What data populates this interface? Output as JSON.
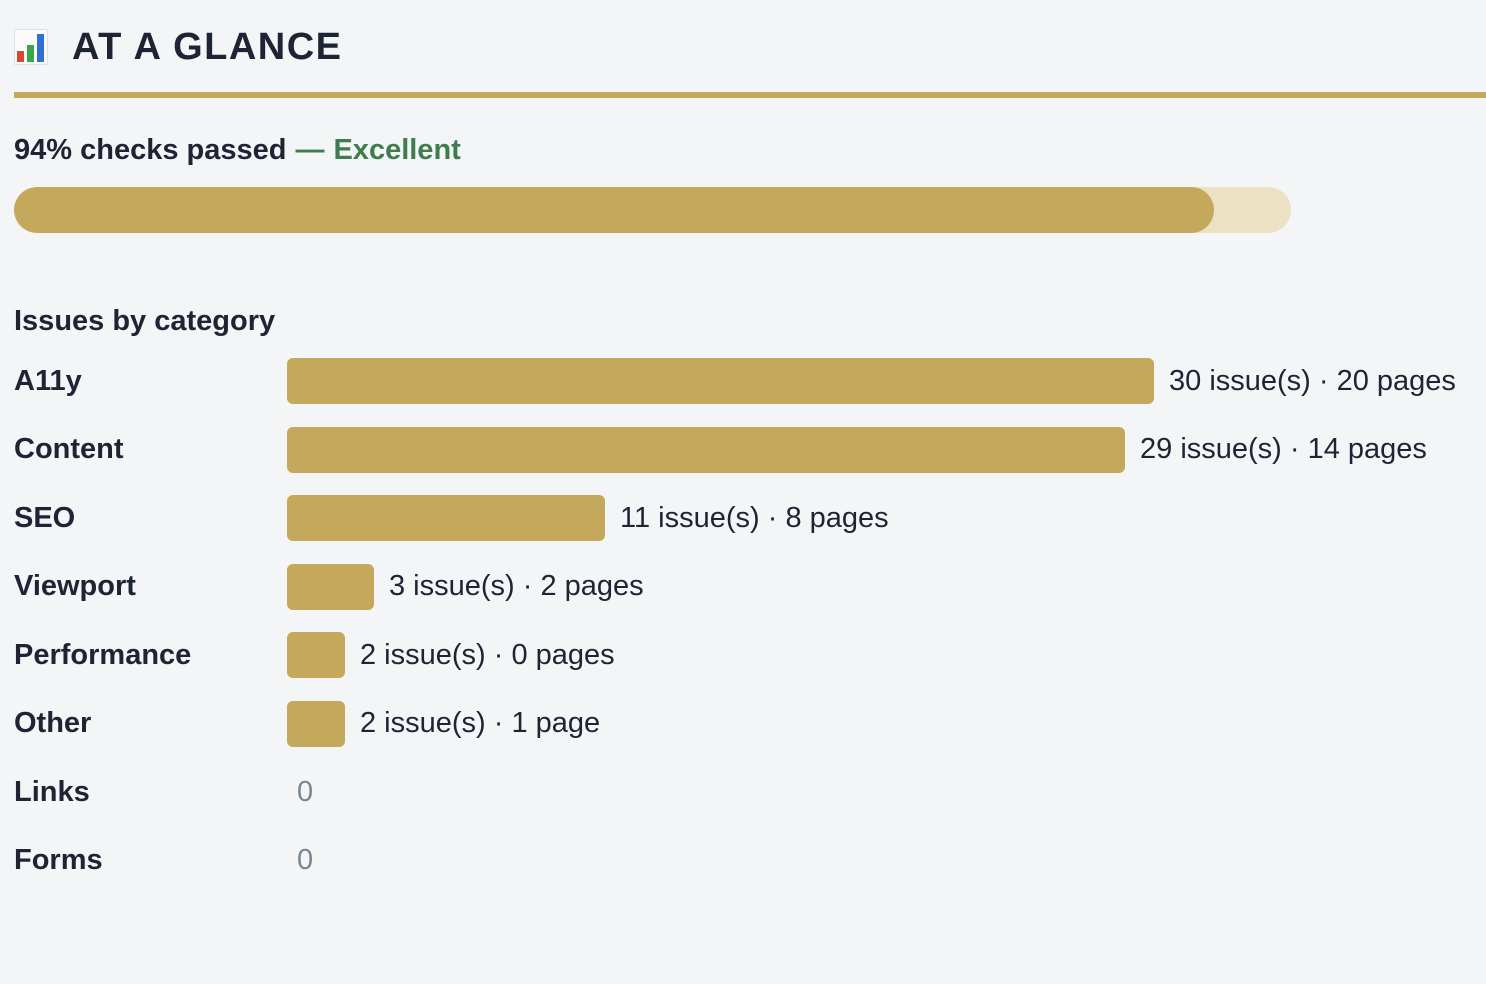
{
  "header": {
    "icon": "bar-chart-icon",
    "title": "AT A GLANCE"
  },
  "colors": {
    "accent": "#c4a85b",
    "track": "#ebe2c4",
    "good": "#3f7d4e",
    "muted": "#7a8596",
    "background": "#f3f5f7"
  },
  "summary": {
    "text": "94% checks passed",
    "separator": "—",
    "rating": "Excellent",
    "percent": 94
  },
  "issues": {
    "title": "Issues by category",
    "categories": [
      {
        "label": "A11y",
        "issues": 30,
        "detail": "30 issue(s) · 20 pages"
      },
      {
        "label": "Content",
        "issues": 29,
        "detail": "29 issue(s) · 14 pages"
      },
      {
        "label": "SEO",
        "issues": 11,
        "detail": "11 issue(s) · 8 pages"
      },
      {
        "label": "Viewport",
        "issues": 3,
        "detail": "3 issue(s) · 2 pages"
      },
      {
        "label": "Performance",
        "issues": 2,
        "detail": "2 issue(s) · 0 pages"
      },
      {
        "label": "Other",
        "issues": 2,
        "detail": "2 issue(s) · 1 page"
      },
      {
        "label": "Links",
        "issues": 0,
        "detail": "0"
      },
      {
        "label": "Forms",
        "issues": 0,
        "detail": "0"
      }
    ]
  }
}
